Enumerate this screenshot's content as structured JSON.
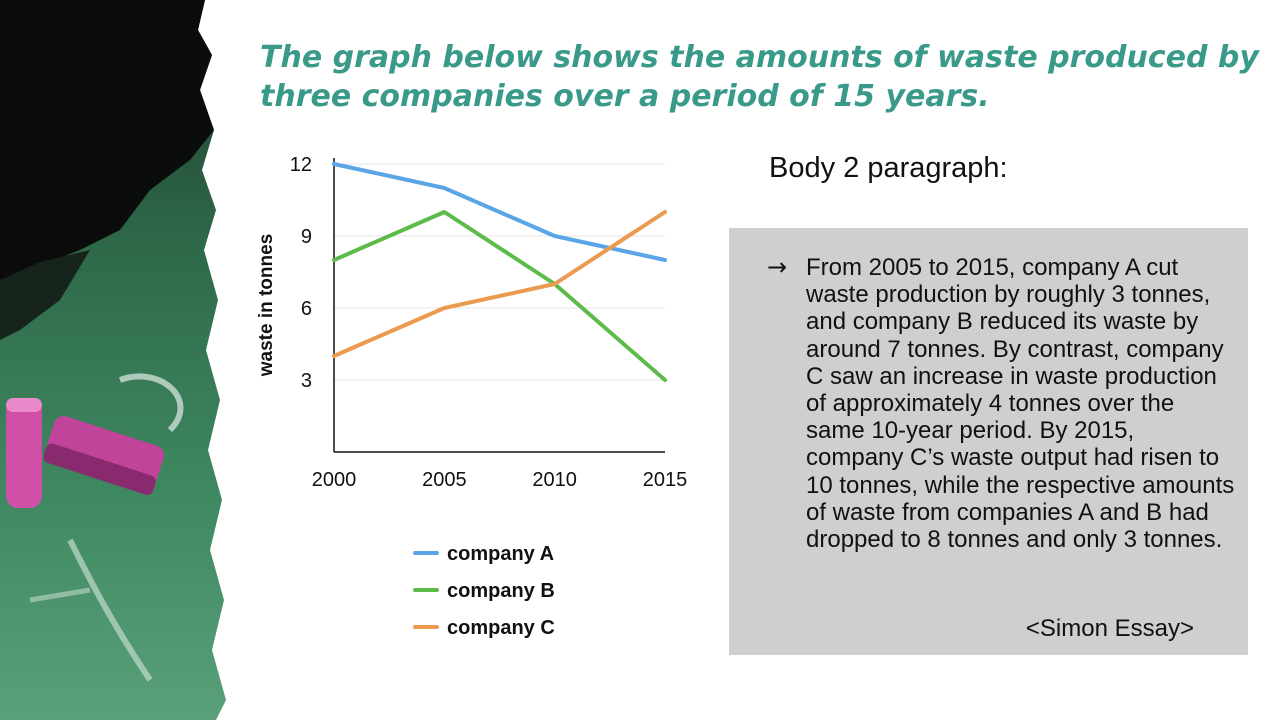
{
  "title": "The graph below shows the amounts of waste produced by three companies over a period of 15 years.",
  "body_heading": "Body 2 paragraph:",
  "panel": {
    "arrow": "→",
    "text": "From 2005 to 2015, company A cut waste production by roughly 3 tonnes, and company B reduced its waste by around 7 tonnes. By contrast, company C saw an increase in waste production of approximately 4 tonnes over the same 10-year period. By 2015, company C’s waste output had risen to 10 tonnes, while the respective amounts of waste from companies A and B had dropped to 8 tonnes and only 3 tonnes.",
    "source": "<Simon Essay>"
  },
  "chart_data": {
    "type": "line",
    "title": "",
    "xlabel": "",
    "ylabel": "waste in tonnes",
    "categories": [
      "2000",
      "2005",
      "2010",
      "2015"
    ],
    "y_ticks": [
      3,
      6,
      9,
      12
    ],
    "ylim": [
      0,
      12
    ],
    "grid": true,
    "legend_position": "bottom",
    "series": [
      {
        "name": "company A",
        "color": "#5aa5e6",
        "values": [
          12,
          11,
          9,
          8
        ]
      },
      {
        "name": "company B",
        "color": "#5dbb4a",
        "values": [
          8,
          10,
          7,
          3
        ]
      },
      {
        "name": "company C",
        "color": "#ec9a4f",
        "values": [
          4,
          6,
          7,
          10
        ]
      }
    ]
  }
}
